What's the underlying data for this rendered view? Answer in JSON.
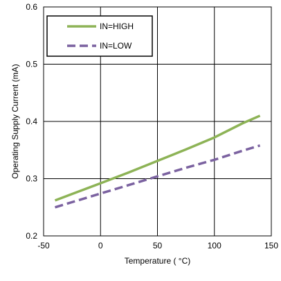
{
  "chart_data": {
    "type": "line",
    "title": "",
    "xlabel": "Temperature ( °C)",
    "ylabel": "Operating Supply Current (mA)",
    "xlim": [
      -50,
      150
    ],
    "ylim": [
      0.2,
      0.6
    ],
    "xticks": [
      -50,
      0,
      50,
      100,
      150
    ],
    "yticks": [
      0.2,
      0.3,
      0.4,
      0.5,
      0.6
    ],
    "xtick_labels": [
      "-50",
      "0",
      "50",
      "100",
      "150"
    ],
    "ytick_labels": [
      "0.2",
      "0.3",
      "0.4",
      "0.5",
      "0.6"
    ],
    "grid": true,
    "legend_position": "top-left",
    "series": [
      {
        "name": "IN=HIGH",
        "color": "#8db356",
        "style": "solid",
        "x": [
          -40,
          -20,
          0,
          25,
          50,
          75,
          100,
          125,
          140
        ],
        "y": [
          0.262,
          0.277,
          0.292,
          0.311,
          0.331,
          0.351,
          0.372,
          0.397,
          0.41
        ]
      },
      {
        "name": "IN=LOW",
        "color": "#7b62a0",
        "style": "dashed",
        "x": [
          -40,
          -20,
          0,
          25,
          50,
          75,
          100,
          125,
          140
        ],
        "y": [
          0.25,
          0.262,
          0.274,
          0.289,
          0.304,
          0.319,
          0.333,
          0.349,
          0.358
        ]
      }
    ]
  }
}
